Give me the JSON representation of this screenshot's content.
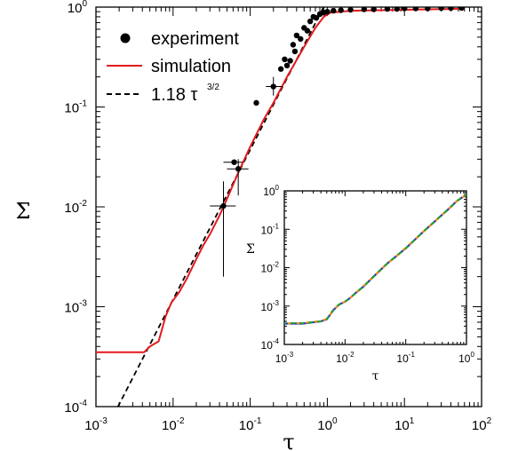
{
  "chart_data": [
    {
      "type": "scatter",
      "xlabel": "τ",
      "ylabel": "Σ",
      "xscale": "log",
      "yscale": "log",
      "xlim": [
        0.001,
        100
      ],
      "ylim": [
        0.0001,
        1
      ],
      "x_tick_labels": [
        {
          "base": "10",
          "exp": "-3"
        },
        {
          "base": "10",
          "exp": "-2"
        },
        {
          "base": "10",
          "exp": "-1"
        },
        {
          "base": "10",
          "exp": "0"
        },
        {
          "base": "10",
          "exp": "1"
        },
        {
          "base": "10",
          "exp": "2"
        }
      ],
      "y_tick_labels": [
        {
          "base": "10",
          "exp": "-4"
        },
        {
          "base": "10",
          "exp": "-3"
        },
        {
          "base": "10",
          "exp": "-2"
        },
        {
          "base": "10",
          "exp": "-1"
        },
        {
          "base": "10",
          "exp": "0"
        }
      ],
      "legend_position": "top-left",
      "series": [
        {
          "name": "experiment",
          "kind": "points-with-errorbars",
          "color": "#000000",
          "points": [
            {
              "x": 0.045,
              "y": 0.0102,
              "xerr": [
                0.03,
                0.065
              ],
              "yerr": [
                0.002,
                0.018
              ]
            },
            {
              "x": 0.062,
              "y": 0.028,
              "xerr": [
                0.045,
                0.08
              ]
            },
            {
              "x": 0.07,
              "y": 0.024,
              "xerr": [
                0.05,
                0.095
              ],
              "yerr": [
                0.013,
                0.03
              ]
            },
            {
              "x": 0.12,
              "y": 0.11
            },
            {
              "x": 0.2,
              "y": 0.16,
              "xerr": [
                0.16,
                0.26
              ],
              "yerr": [
                0.13,
                0.2
              ]
            },
            {
              "x": 0.25,
              "y": 0.24
            },
            {
              "x": 0.28,
              "y": 0.3
            },
            {
              "x": 0.3,
              "y": 0.26
            },
            {
              "x": 0.33,
              "y": 0.29
            },
            {
              "x": 0.36,
              "y": 0.42
            },
            {
              "x": 0.38,
              "y": 0.36
            },
            {
              "x": 0.4,
              "y": 0.52
            },
            {
              "x": 0.45,
              "y": 0.48
            },
            {
              "x": 0.5,
              "y": 0.62
            },
            {
              "x": 0.55,
              "y": 0.58
            },
            {
              "x": 0.6,
              "y": 0.72
            },
            {
              "x": 0.66,
              "y": 0.8
            },
            {
              "x": 0.72,
              "y": 0.78
            },
            {
              "x": 0.8,
              "y": 0.85
            },
            {
              "x": 0.9,
              "y": 0.88
            },
            {
              "x": 1.0,
              "y": 0.9
            },
            {
              "x": 1.2,
              "y": 0.92
            },
            {
              "x": 1.5,
              "y": 0.93
            },
            {
              "x": 2.0,
              "y": 0.94
            },
            {
              "x": 3.0,
              "y": 0.95
            },
            {
              "x": 4.0,
              "y": 0.95
            },
            {
              "x": 6.0,
              "y": 0.96
            },
            {
              "x": 8.0,
              "y": 0.96
            },
            {
              "x": 10.0,
              "y": 0.97
            },
            {
              "x": 14.0,
              "y": 0.97
            },
            {
              "x": 20.0,
              "y": 0.97
            },
            {
              "x": 30.0,
              "y": 0.98
            },
            {
              "x": 40.0,
              "y": 0.98
            },
            {
              "x": 55.0,
              "y": 0.98
            }
          ]
        },
        {
          "name": "simulation",
          "kind": "line",
          "color": "#e41a1c",
          "x": [
            0.001,
            0.0042,
            0.005,
            0.0065,
            0.008,
            0.0095,
            0.012,
            0.015,
            0.02,
            0.025,
            0.03,
            0.04,
            0.05,
            0.07,
            0.1,
            0.15,
            0.2,
            0.3,
            0.5,
            0.7,
            0.9,
            1.1,
            1.5,
            2,
            5,
            10,
            20,
            55
          ],
          "y": [
            0.00035,
            0.00035,
            0.0004,
            0.00045,
            0.0008,
            0.0011,
            0.0014,
            0.0019,
            0.003,
            0.0042,
            0.0053,
            0.0082,
            0.012,
            0.022,
            0.04,
            0.075,
            0.11,
            0.2,
            0.4,
            0.62,
            0.8,
            0.88,
            0.9,
            0.92,
            0.93,
            0.94,
            0.95,
            0.96
          ]
        },
        {
          "name": "1.18 τ",
          "name_sup": "3/2",
          "kind": "dashed-line",
          "color": "#000000",
          "formula": "1.18*x^1.5",
          "x": [
            0.0017,
            0.01,
            0.1,
            1.3
          ],
          "y": [
            8.27e-05,
            0.00118,
            0.0373,
            1.75
          ]
        }
      ]
    },
    {
      "type": "line",
      "inset": true,
      "xlabel": "τ",
      "ylabel": "Σ",
      "xscale": "log",
      "yscale": "log",
      "xlim": [
        0.001,
        1
      ],
      "ylim": [
        0.0001,
        1
      ],
      "x_tick_labels": [
        {
          "base": "10",
          "exp": "-3"
        },
        {
          "base": "10",
          "exp": "-2"
        },
        {
          "base": "10",
          "exp": "-1"
        },
        {
          "base": "10",
          "exp": "0"
        }
      ],
      "y_tick_labels": [
        {
          "base": "10",
          "exp": "-4"
        },
        {
          "base": "10",
          "exp": "-3"
        },
        {
          "base": "10",
          "exp": "-2"
        },
        {
          "base": "10",
          "exp": "-1"
        },
        {
          "base": "10",
          "exp": "0"
        }
      ],
      "series": [
        {
          "color": "#1f3fbf",
          "x": [
            0.001,
            0.002,
            0.004,
            0.005,
            0.0065,
            0.008,
            0.01,
            0.012,
            0.015,
            0.02,
            0.03,
            0.05,
            0.07,
            0.1,
            0.2,
            0.3,
            0.5,
            0.7,
            1.0
          ],
          "y": [
            0.00035,
            0.00035,
            0.0004,
            0.00045,
            0.0008,
            0.0011,
            0.0013,
            0.0016,
            0.0022,
            0.0032,
            0.006,
            0.013,
            0.02,
            0.032,
            0.09,
            0.16,
            0.33,
            0.55,
            0.8
          ]
        },
        {
          "color": "#2ca02c",
          "x": [
            0.001,
            0.002,
            0.004,
            0.005,
            0.0065,
            0.008,
            0.01,
            0.012,
            0.015,
            0.02,
            0.03,
            0.05,
            0.07,
            0.1,
            0.2,
            0.3,
            0.5,
            0.7,
            1.0
          ],
          "y": [
            0.00036,
            0.00036,
            0.0004,
            0.00046,
            0.00082,
            0.0011,
            0.0013,
            0.0016,
            0.0022,
            0.0032,
            0.006,
            0.013,
            0.02,
            0.032,
            0.09,
            0.16,
            0.33,
            0.55,
            0.8
          ]
        },
        {
          "color": "#ff8c1a",
          "x": [
            0.001,
            0.002,
            0.004,
            0.005,
            0.0065,
            0.008,
            0.01,
            0.012,
            0.015,
            0.02,
            0.03,
            0.05,
            0.07,
            0.1,
            0.2,
            0.3,
            0.5,
            0.7,
            1.0
          ],
          "y": [
            0.00035,
            0.00036,
            0.00041,
            0.00046,
            0.0008,
            0.0011,
            0.0013,
            0.0016,
            0.0022,
            0.0033,
            0.006,
            0.013,
            0.02,
            0.033,
            0.09,
            0.16,
            0.33,
            0.55,
            0.8
          ]
        }
      ]
    }
  ]
}
